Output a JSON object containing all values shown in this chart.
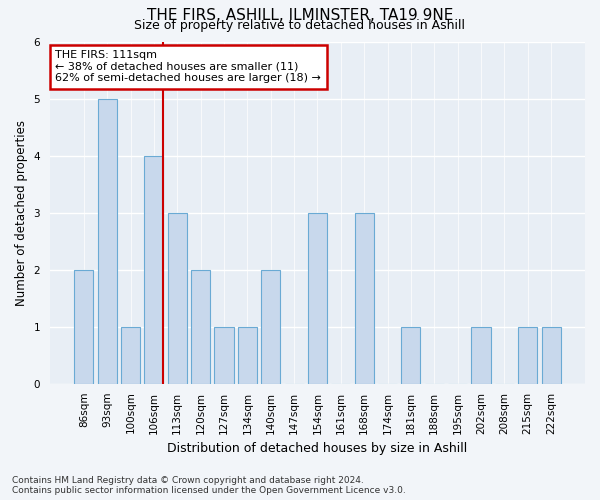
{
  "title": "THE FIRS, ASHILL, ILMINSTER, TA19 9NE",
  "subtitle": "Size of property relative to detached houses in Ashill",
  "xlabel": "Distribution of detached houses by size in Ashill",
  "ylabel": "Number of detached properties",
  "categories": [
    "86sqm",
    "93sqm",
    "100sqm",
    "106sqm",
    "113sqm",
    "120sqm",
    "127sqm",
    "134sqm",
    "140sqm",
    "147sqm",
    "154sqm",
    "161sqm",
    "168sqm",
    "174sqm",
    "181sqm",
    "188sqm",
    "195sqm",
    "202sqm",
    "208sqm",
    "215sqm",
    "222sqm"
  ],
  "values": [
    2,
    5,
    1,
    4,
    3,
    2,
    1,
    1,
    2,
    0,
    3,
    0,
    3,
    0,
    1,
    0,
    0,
    1,
    0,
    1,
    1
  ],
  "bar_color": "#c8d8ec",
  "bar_edgecolor": "#6aaad4",
  "marker_color": "#cc0000",
  "marker_between": [
    3,
    4
  ],
  "ylim": [
    0,
    6
  ],
  "yticks": [
    0,
    1,
    2,
    3,
    4,
    5,
    6
  ],
  "annotation_text": "THE FIRS: 111sqm\n← 38% of detached houses are smaller (11)\n62% of semi-detached houses are larger (18) →",
  "annotation_box_facecolor": "#ffffff",
  "annotation_box_edgecolor": "#cc0000",
  "footer_line1": "Contains HM Land Registry data © Crown copyright and database right 2024.",
  "footer_line2": "Contains public sector information licensed under the Open Government Licence v3.0.",
  "fig_facecolor": "#f2f5f9",
  "plot_facecolor": "#e8eef5",
  "grid_color": "#ffffff",
  "title_fontsize": 11,
  "subtitle_fontsize": 9,
  "ylabel_fontsize": 8.5,
  "xlabel_fontsize": 9,
  "tick_fontsize": 7.5,
  "annotation_fontsize": 8,
  "footer_fontsize": 6.5
}
